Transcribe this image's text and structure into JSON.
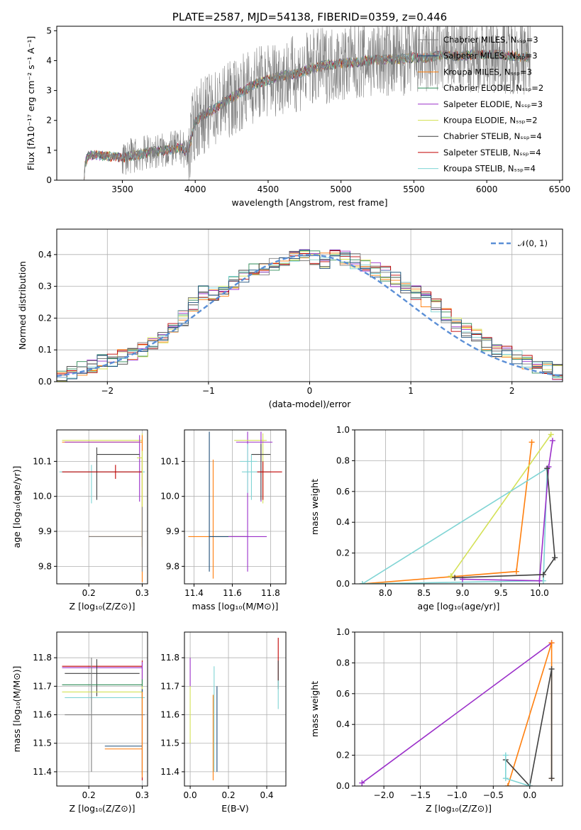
{
  "colors": {
    "series": [
      "#808080",
      "#1f4e79",
      "#ff7f0e",
      "#2e8b57",
      "#9b30c9",
      "#d4e157",
      "#404040",
      "#c00000",
      "#7fd4d4"
    ],
    "gaussian": "#5b8fd6"
  },
  "chart_data": [
    {
      "type": "line",
      "title": "PLATE=2587, MJD=54138, FIBERID=0359, z=0.446",
      "xlabel": "wavelength [Angstrom, rest frame]",
      "ylabel": "Flux [fλ10⁻¹⁷ erg cm⁻² s⁻¹ A⁻¹]",
      "xlim": [
        3050,
        6520
      ],
      "ylim": [
        0,
        5.15
      ],
      "xticks": [
        "3500",
        "4000",
        "4500",
        "5000",
        "5500",
        "6000",
        "6500"
      ],
      "yticks": [
        "0",
        "1",
        "2",
        "3",
        "4",
        "5"
      ],
      "legend_position": "upper-right",
      "series": [
        {
          "name": "Chabrier MILES, Nₛₛₚ=3"
        },
        {
          "name": "Salpeter MILES, Nₛₛₚ=3"
        },
        {
          "name": "Kroupa MILES, Nₛₛₚ=3"
        },
        {
          "name": "Chabrier ELODIE, Nₛₛₚ=2"
        },
        {
          "name": "Salpeter ELODIE, Nₛₛₚ=3"
        },
        {
          "name": "Kroupa ELODIE, Nₛₛₚ=2"
        },
        {
          "name": "Chabrier STELIB, Nₛₛₚ=4"
        },
        {
          "name": "Salpeter STELIB, Nₛₛₚ=4"
        },
        {
          "name": "Kroupa STELIB, Nₛₛₚ=4"
        }
      ],
      "data_spectrum": {
        "x": [
          3220,
          3260,
          3300,
          3400,
          3500,
          3550,
          3600,
          3650,
          3700,
          3800,
          3900,
          3950,
          4000,
          4100,
          4200,
          4300,
          4400,
          4500,
          4600,
          4700,
          4800,
          4900,
          5000,
          5100,
          5200,
          5300,
          5400,
          5500,
          5600,
          5700,
          5800,
          5900,
          6000,
          6100,
          6200,
          6300
        ],
        "y": [
          0.0,
          0.8,
          0.85,
          0.8,
          0.75,
          0.8,
          0.85,
          0.9,
          0.95,
          1.0,
          1.1,
          0.9,
          2.0,
          2.3,
          2.6,
          2.9,
          3.2,
          3.35,
          3.5,
          3.55,
          3.75,
          3.85,
          3.9,
          3.95,
          4.0,
          4.05,
          4.05,
          4.1,
          4.1,
          4.2,
          4.15,
          4.2,
          4.2,
          4.2,
          4.15,
          4.1
        ]
      }
    },
    {
      "type": "line",
      "xlabel": "(data-model)/error",
      "ylabel": "Normed distribution",
      "xlim": [
        -2.5,
        2.5
      ],
      "ylim": [
        0,
        0.48
      ],
      "xticks": [
        "−2",
        "−1",
        "0",
        "1",
        "2"
      ],
      "yticks": [
        "0.0",
        "0.1",
        "0.2",
        "0.3",
        "0.4"
      ],
      "legend": "𝒩(0, 1)",
      "legend_position": "upper-right",
      "grid": true,
      "histogram_bins": [
        -2.5,
        -2.4,
        -2.3,
        -2.2,
        -2.1,
        -2.0,
        -1.9,
        -1.8,
        -1.7,
        -1.6,
        -1.5,
        -1.4,
        -1.3,
        -1.2,
        -1.1,
        -1.0,
        -0.9,
        -0.8,
        -0.7,
        -0.6,
        -0.5,
        -0.4,
        -0.3,
        -0.2,
        -0.1,
        0.0,
        0.1,
        0.2,
        0.3,
        0.4,
        0.5,
        0.6,
        0.7,
        0.8,
        0.9,
        1.0,
        1.1,
        1.2,
        1.3,
        1.4,
        1.5,
        1.6,
        1.7,
        1.8,
        1.9,
        2.0,
        2.1,
        2.2,
        2.3,
        2.4,
        2.5
      ],
      "histogram_values": [
        0.02,
        0.03,
        0.04,
        0.05,
        0.06,
        0.07,
        0.08,
        0.09,
        0.1,
        0.12,
        0.14,
        0.16,
        0.2,
        0.24,
        0.28,
        0.28,
        0.29,
        0.31,
        0.33,
        0.35,
        0.36,
        0.37,
        0.38,
        0.39,
        0.4,
        0.39,
        0.38,
        0.4,
        0.39,
        0.38,
        0.37,
        0.35,
        0.34,
        0.32,
        0.3,
        0.28,
        0.26,
        0.24,
        0.21,
        0.18,
        0.16,
        0.14,
        0.12,
        0.1,
        0.09,
        0.08,
        0.06,
        0.05,
        0.04,
        0.03
      ]
    },
    {
      "type": "scatter",
      "xlabel": "Z [log₁₀(Z/Z⊙)]",
      "ylabel": "age  [log₁₀(age/yr)]",
      "xlim": [
        0.14,
        0.31
      ],
      "ylim": [
        9.75,
        10.19
      ],
      "xticks": [
        "0.2",
        "0.3"
      ],
      "yticks": [
        "9.8",
        "9.9",
        "10.0",
        "10.1"
      ],
      "grid": true
    },
    {
      "type": "scatter",
      "xlabel": "mass [log₁₀(M/M⊙)]",
      "xlim": [
        11.35,
        11.88
      ],
      "ylim": [
        9.75,
        10.19
      ],
      "xticks": [
        "11.4",
        "11.6",
        "11.8"
      ],
      "yticks": [
        "9.8",
        "9.9",
        "10.0",
        "10.1"
      ],
      "grid": true
    },
    {
      "type": "line",
      "xlabel": "age  [log₁₀(age/yr)]",
      "ylabel": "mass weight",
      "xlim": [
        7.6,
        10.3
      ],
      "ylim": [
        0,
        1.0
      ],
      "xticks": [
        "8.0",
        "8.5",
        "9.0",
        "9.5",
        "10.0"
      ],
      "yticks": [
        "0.0",
        "0.2",
        "0.4",
        "0.6",
        "0.8",
        "1.0"
      ],
      "grid": true,
      "series": [
        {
          "x": [
            7.7,
            9.7,
            9.9
          ],
          "y": [
            0.0,
            0.08,
            0.92
          ]
        },
        {
          "x": [
            8.85,
            10.15,
            8.85
          ],
          "y": [
            0.05,
            0.97,
            0.05
          ]
        },
        {
          "x": [
            7.7,
            10.1,
            10.05,
            7.7
          ],
          "y": [
            0.0,
            0.75,
            0.02,
            0.0
          ]
        },
        {
          "x": [
            9.0,
            10.0,
            10.12,
            10.17
          ],
          "y": [
            0.03,
            0.02,
            0.76,
            0.93
          ]
        },
        {
          "x": [
            8.9,
            10.05,
            10.2,
            10.1
          ],
          "y": [
            0.04,
            0.06,
            0.17,
            0.75
          ]
        }
      ]
    },
    {
      "type": "scatter",
      "xlabel": "Z [log₁₀(Z/Z⊙)]",
      "ylabel": "mass [log₁₀(M/M⊙)]",
      "xlim": [
        0.14,
        0.31
      ],
      "ylim": [
        11.35,
        11.89
      ],
      "xticks": [
        "0.2",
        "0.3"
      ],
      "yticks": [
        "11.4",
        "11.5",
        "11.6",
        "11.7",
        "11.8"
      ],
      "grid": true
    },
    {
      "type": "scatter",
      "xlabel": "E(B-V)",
      "xlim": [
        -0.03,
        0.5
      ],
      "ylim": [
        11.35,
        11.89
      ],
      "xticks": [
        "0.0",
        "0.2",
        "0.4"
      ],
      "yticks": [
        "11.4",
        "11.5",
        "11.6",
        "11.7",
        "11.8"
      ],
      "grid": true
    },
    {
      "type": "line",
      "xlabel": "Z [log₁₀(Z/Z⊙)]",
      "ylabel": "mass weight",
      "xlim": [
        -2.4,
        0.45
      ],
      "ylim": [
        0,
        1.0
      ],
      "xticks": [
        "−2.0",
        "−1.5",
        "−1.0",
        "−0.5",
        "0.0"
      ],
      "yticks": [
        "0.0",
        "0.2",
        "0.4",
        "0.6",
        "0.8",
        "1.0"
      ],
      "grid": true,
      "series": [
        {
          "x": [
            -2.3,
            0.3
          ],
          "y": [
            0.02,
            0.93
          ]
        },
        {
          "x": [
            -0.3,
            0.3,
            0.3
          ],
          "y": [
            0.0,
            0.93,
            0.05
          ]
        },
        {
          "x": [
            -0.33,
            0.0,
            0.3,
            0.3
          ],
          "y": [
            0.17,
            0.0,
            0.76,
            0.05
          ]
        },
        {
          "x": [
            -0.33,
            -0.33,
            0.0
          ],
          "y": [
            0.2,
            0.05,
            0.0
          ]
        }
      ]
    }
  ]
}
